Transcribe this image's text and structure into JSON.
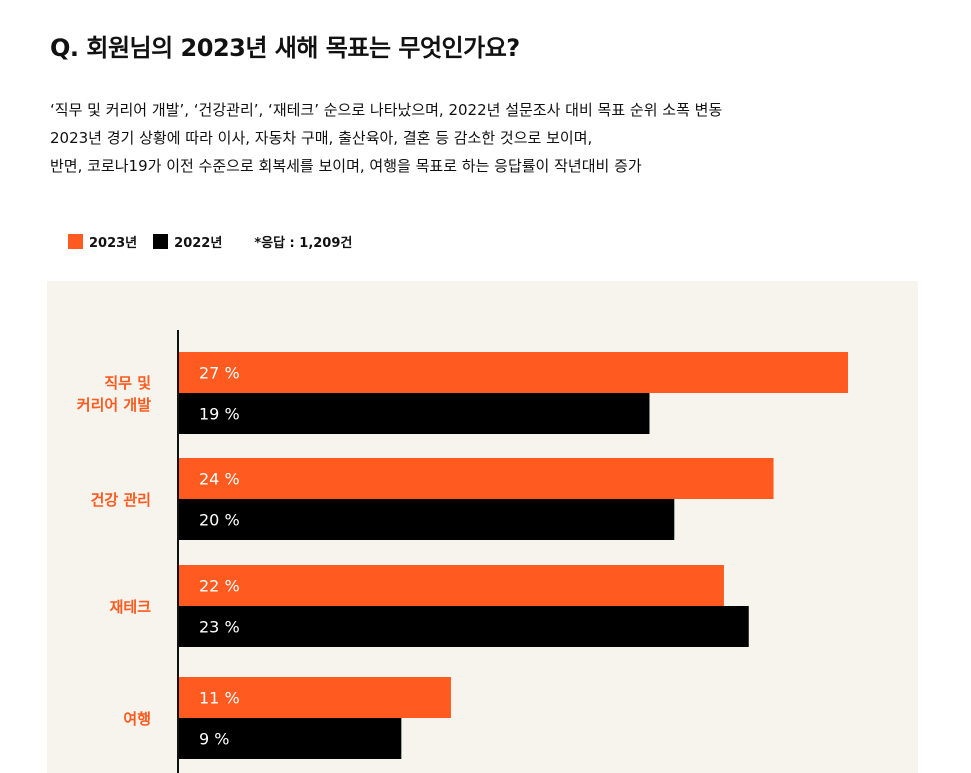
{
  "title": "Q. 회원님의 2023년 새해 목표는 무엇인가요?",
  "description": [
    "‘직무 및 커리어 개발’, ‘건강관리’, ‘재테크’ 순으로 나타났으며, 2022년 설문조사 대비 목표 순위 소폭 변동",
    "2023년 경기 상황에 따라 이사, 자동차 구매, 출산육아, 결혼 등 감소한 것으로 보이며,",
    "반면, 코로나19가 이전 수준으로 회복세를 보이며, 여행을 목표로 하는 응답률이 작년대비 증가"
  ],
  "legend": {
    "items": [
      {
        "label": "2023년",
        "color": "#ff5a1f"
      },
      {
        "label": "2022년",
        "color": "#000000"
      }
    ],
    "note": "*응답 : 1,209건"
  },
  "colors": {
    "accent": "#ff5a1f",
    "secondary": "#000000",
    "panel_background": "#f6f4ec",
    "category_label": "#ff5a1f"
  },
  "chart_data": {
    "type": "bar",
    "orientation": "horizontal",
    "categories": [
      [
        "직무 및",
        "커리어 개발"
      ],
      [
        "건강 관리"
      ],
      [
        "재테크"
      ],
      [
        "여행"
      ]
    ],
    "series": [
      {
        "name": "2023년",
        "values": [
          27,
          24,
          22,
          11
        ],
        "labels": [
          "27 %",
          "24 %",
          "22 %",
          "11 %"
        ],
        "color": "#ff5a1f"
      },
      {
        "name": "2022년",
        "values": [
          19,
          20,
          23,
          9
        ],
        "labels": [
          "19 %",
          "20 %",
          "23 %",
          "9 %"
        ],
        "color": "#000000"
      }
    ],
    "value_unit": "%",
    "xlim": [
      0,
      28
    ],
    "grid": false,
    "legend_position": "top-left"
  }
}
